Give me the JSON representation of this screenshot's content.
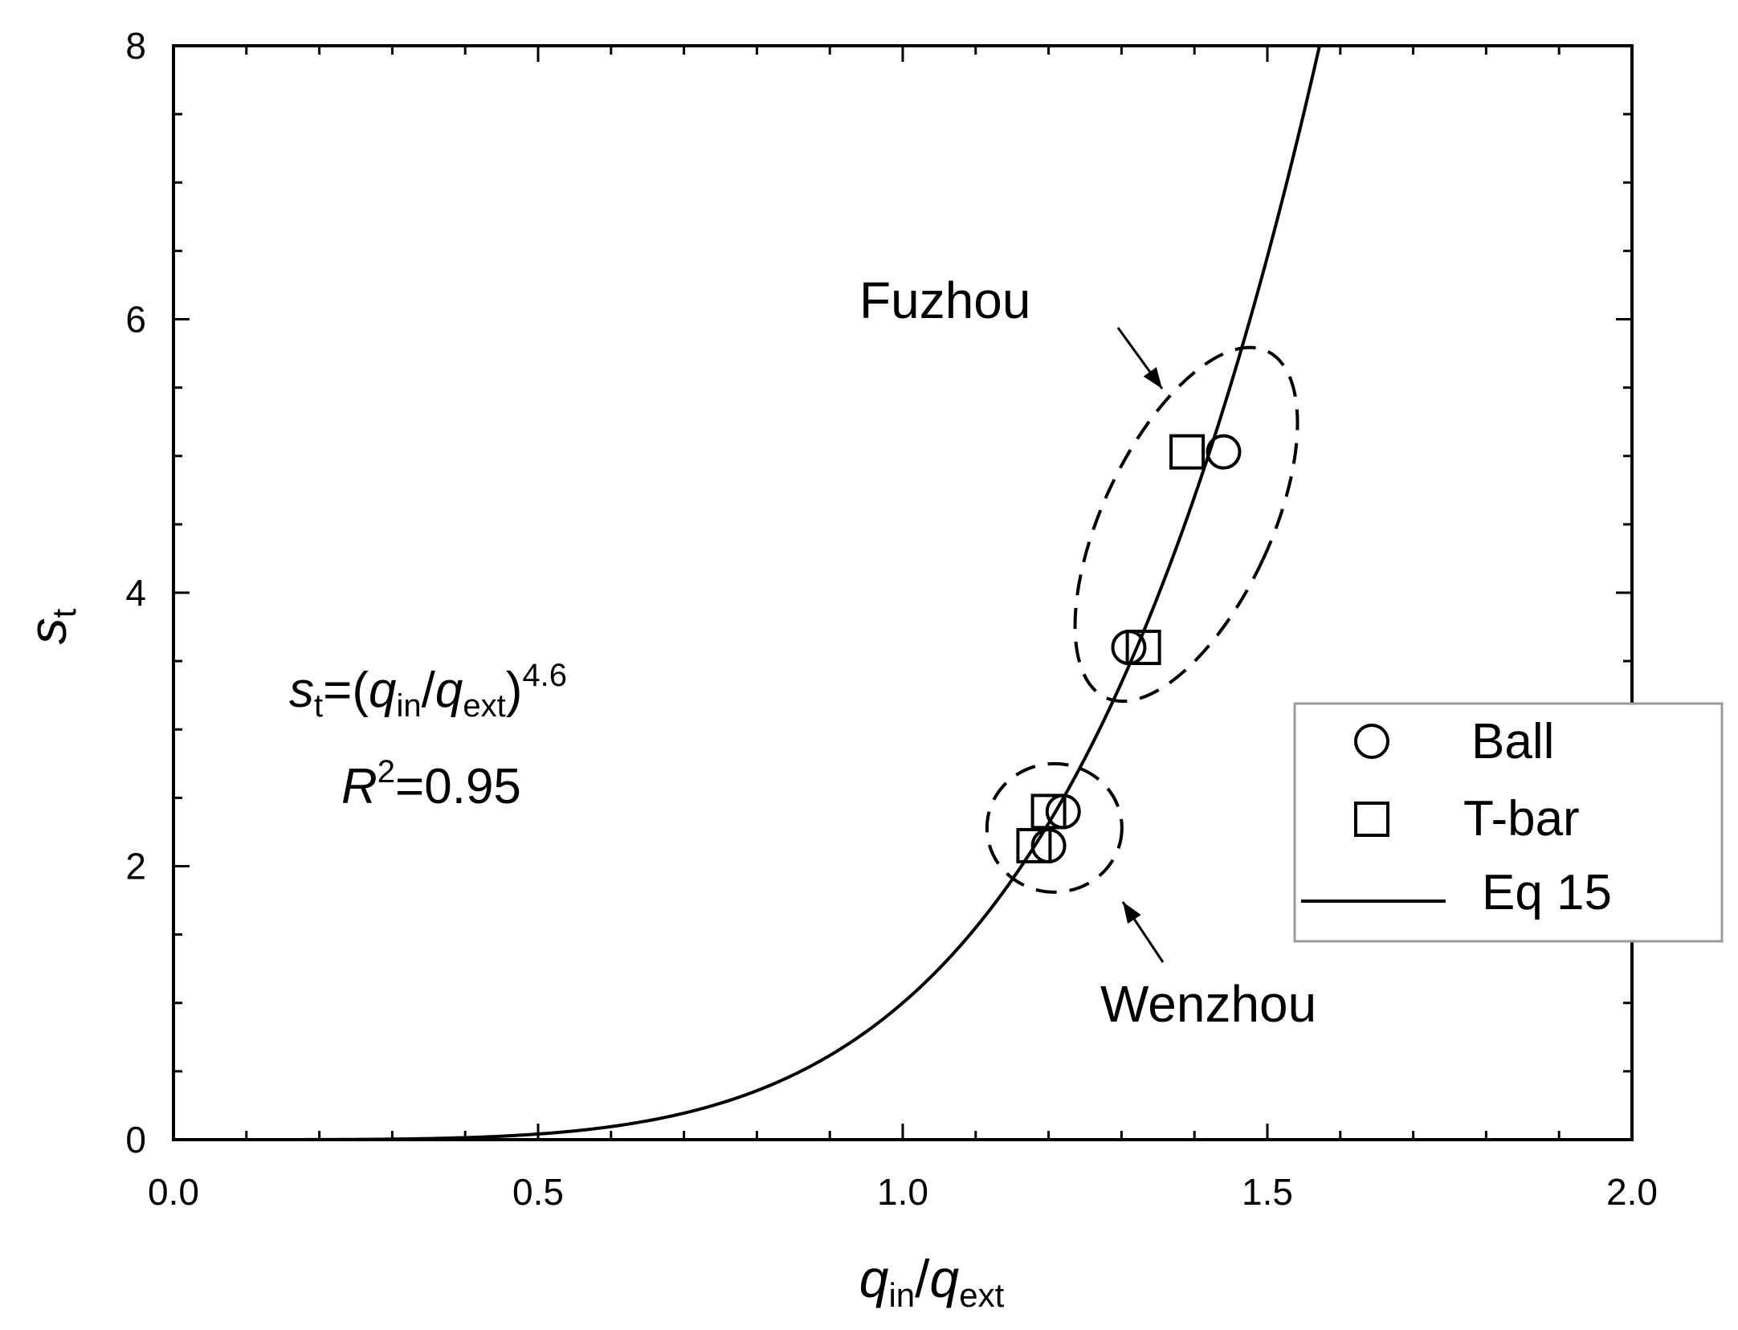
{
  "chart_data": {
    "type": "scatter",
    "xlabel": {
      "base": "q",
      "sub": "in",
      "slash": "/",
      "base2": "q",
      "sub2": "ext"
    },
    "ylabel": {
      "base": "s",
      "sub": "t"
    },
    "xlim": [
      0,
      2.0
    ],
    "ylim": [
      0,
      8
    ],
    "x_ticks": [
      "0.0",
      "0.5",
      "1.0",
      "1.5",
      "2.0"
    ],
    "x_tick_values": [
      0,
      0.5,
      1.0,
      1.5,
      2.0
    ],
    "y_ticks": [
      "0",
      "2",
      "4",
      "6",
      "8"
    ],
    "y_tick_values": [
      0,
      2,
      4,
      6,
      8
    ],
    "grid": false,
    "legend_position": "right",
    "series": [
      {
        "name": "Ball",
        "marker": "circle",
        "points": [
          [
            1.2,
            2.15
          ],
          [
            1.22,
            2.4
          ],
          [
            1.31,
            3.6
          ],
          [
            1.44,
            5.03
          ]
        ]
      },
      {
        "name": "T-bar",
        "marker": "square",
        "points": [
          [
            1.18,
            2.15
          ],
          [
            1.2,
            2.4
          ],
          [
            1.33,
            3.6
          ],
          [
            1.39,
            5.03
          ]
        ]
      },
      {
        "name": "Eq 15",
        "type": "line",
        "exponent": 4.6
      }
    ],
    "equation": {
      "lhs_base": "s",
      "lhs_sub": "t",
      "eq": "=(",
      "q1": "q",
      "q1_sub": "in",
      "slash": "/",
      "q2": "q",
      "q2_sub": "ext",
      "close": ")",
      "power": "4.6"
    },
    "r_squared": {
      "base": "R",
      "sup": "2",
      "value": "=0.95"
    },
    "annotations": [
      {
        "text": "Fuzhou"
      },
      {
        "text": "Wenzhou"
      }
    ]
  }
}
